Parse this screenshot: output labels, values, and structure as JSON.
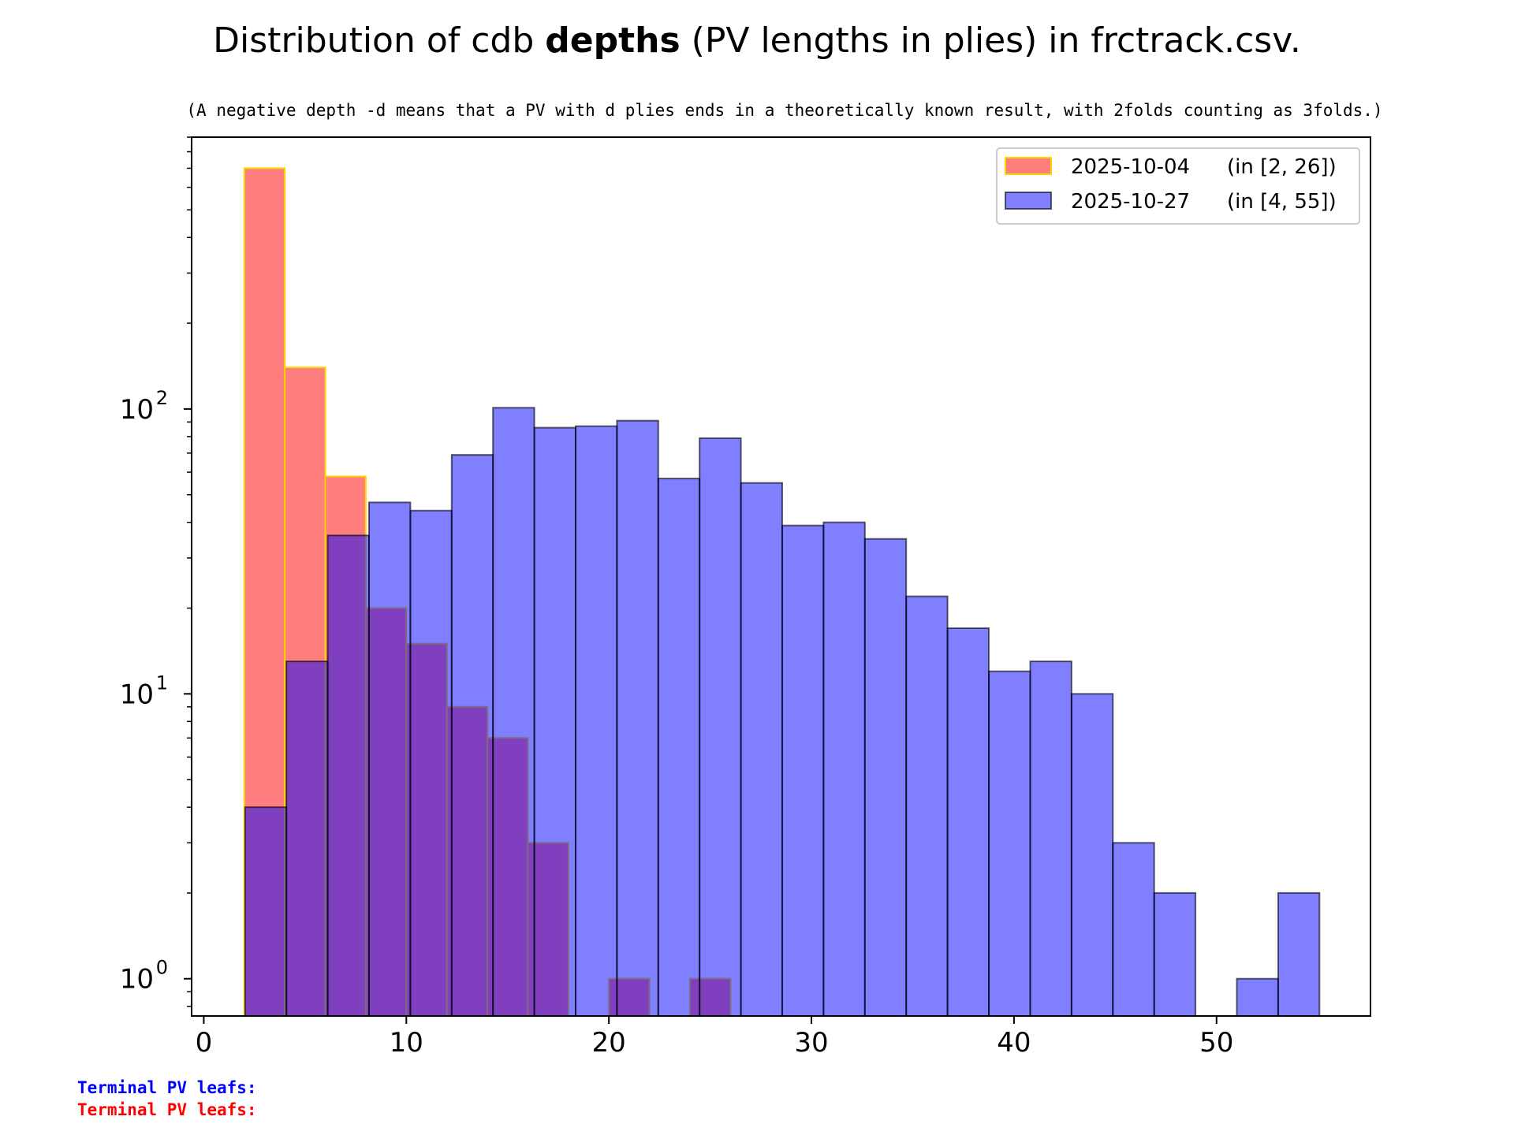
{
  "chart_data": {
    "type": "bar",
    "title_pre": "Distribution of cdb ",
    "title_bold": "depths",
    "title_post": " (PV lengths in plies) in frctrack.csv.",
    "subtitle": "(A negative depth -d means that a PV with d plies ends in a theoretically known result, with 2folds counting as 3folds.)",
    "yscale": "log",
    "xlim": [
      -0.6,
      57.6
    ],
    "ylim": [
      0.74,
      900
    ],
    "xticks": [
      0,
      10,
      20,
      30,
      40,
      50
    ],
    "yticks": [
      {
        "value": 1,
        "base": "10",
        "exp": "0"
      },
      {
        "value": 10,
        "base": "10",
        "exp": "1"
      },
      {
        "value": 100,
        "base": "10",
        "exp": "2"
      }
    ],
    "legend_position": "top-right",
    "series": [
      {
        "name": "2025-10-04",
        "range_label": "(in [2, 26])",
        "color": "#ff0000",
        "edge_color": "#ffd700",
        "alpha": 0.5,
        "bins": [
          {
            "x0": 2,
            "x1": 4,
            "count": 700
          },
          {
            "x0": 4,
            "x1": 6,
            "count": 140
          },
          {
            "x0": 6,
            "x1": 8,
            "count": 58
          },
          {
            "x0": 8,
            "x1": 10,
            "count": 20
          },
          {
            "x0": 10,
            "x1": 12,
            "count": 15
          },
          {
            "x0": 12,
            "x1": 14,
            "count": 9
          },
          {
            "x0": 14,
            "x1": 16,
            "count": 7
          },
          {
            "x0": 16,
            "x1": 18,
            "count": 3
          },
          {
            "x0": 20,
            "x1": 22,
            "count": 1
          },
          {
            "x0": 24,
            "x1": 26,
            "count": 1
          }
        ]
      },
      {
        "name": "2025-10-27",
        "range_label": "(in [4, 55])",
        "color": "#0000ff",
        "edge_color": "#000000",
        "alpha": 0.5,
        "bins": [
          {
            "x0": 2.04,
            "x1": 4.08,
            "count": 4
          },
          {
            "x0": 4.08,
            "x1": 6.12,
            "count": 13
          },
          {
            "x0": 6.12,
            "x1": 8.16,
            "count": 36
          },
          {
            "x0": 8.16,
            "x1": 10.2,
            "count": 47
          },
          {
            "x0": 10.2,
            "x1": 12.24,
            "count": 44
          },
          {
            "x0": 12.24,
            "x1": 14.28,
            "count": 69
          },
          {
            "x0": 14.28,
            "x1": 16.32,
            "count": 101
          },
          {
            "x0": 16.32,
            "x1": 18.36,
            "count": 86
          },
          {
            "x0": 18.36,
            "x1": 20.4,
            "count": 87
          },
          {
            "x0": 20.4,
            "x1": 22.44,
            "count": 91
          },
          {
            "x0": 22.44,
            "x1": 24.48,
            "count": 57
          },
          {
            "x0": 24.48,
            "x1": 26.52,
            "count": 79
          },
          {
            "x0": 26.52,
            "x1": 28.56,
            "count": 55
          },
          {
            "x0": 28.56,
            "x1": 30.6,
            "count": 39
          },
          {
            "x0": 30.6,
            "x1": 32.64,
            "count": 40
          },
          {
            "x0": 32.64,
            "x1": 34.68,
            "count": 35
          },
          {
            "x0": 34.68,
            "x1": 36.72,
            "count": 22
          },
          {
            "x0": 36.72,
            "x1": 38.76,
            "count": 17
          },
          {
            "x0": 38.76,
            "x1": 40.8,
            "count": 12
          },
          {
            "x0": 40.8,
            "x1": 42.84,
            "count": 13
          },
          {
            "x0": 42.84,
            "x1": 44.88,
            "count": 10
          },
          {
            "x0": 44.88,
            "x1": 46.92,
            "count": 3
          },
          {
            "x0": 46.92,
            "x1": 48.96,
            "count": 2
          },
          {
            "x0": 51.0,
            "x1": 53.04,
            "count": 1
          },
          {
            "x0": 53.04,
            "x1": 55.08,
            "count": 2
          }
        ]
      }
    ]
  },
  "footer": {
    "line1": "Terminal PV leafs:",
    "line1_color": "#0000ff",
    "line2": "Terminal PV leafs:",
    "line2_color": "#ff0000"
  }
}
